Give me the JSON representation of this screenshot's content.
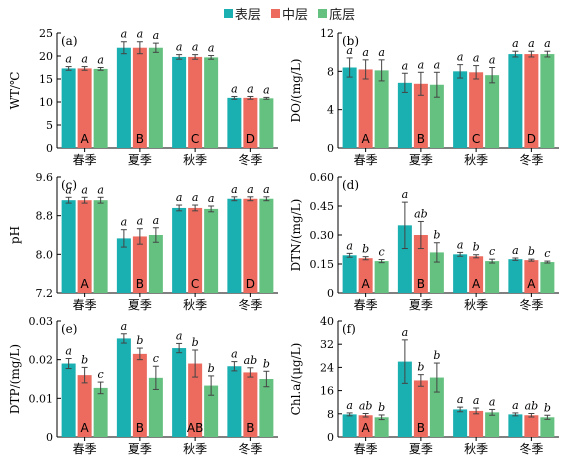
{
  "colors": {
    "surface": "#1AAFB1",
    "middle": "#EC6A5E",
    "bottom": "#65C180"
  },
  "legend": [
    {
      "label": "表层",
      "color": "#1AAFB1"
    },
    {
      "label": "中层",
      "color": "#EC6A5E"
    },
    {
      "label": "底层",
      "color": "#65C180"
    }
  ],
  "chart_data": [
    {
      "panel": "(a)",
      "type": "bar",
      "ylabel": "WT/℃",
      "ylim": [
        0,
        25
      ],
      "yticks": [
        "0",
        "5",
        "10",
        "15",
        "20",
        "25"
      ],
      "categories": [
        "春季",
        "夏季",
        "秋季",
        "冬季"
      ],
      "series": [
        {
          "name": "表层",
          "values": [
            17.3,
            21.8,
            19.8,
            10.9
          ],
          "errors": [
            0.4,
            1.3,
            0.5,
            0.3
          ],
          "letters": [
            "a",
            "a",
            "a",
            "a"
          ]
        },
        {
          "name": "中层",
          "values": [
            17.3,
            21.8,
            19.8,
            10.9
          ],
          "errors": [
            0.4,
            1.3,
            0.5,
            0.3
          ],
          "letters": [
            "a",
            "a",
            "a",
            "a"
          ]
        },
        {
          "name": "底层",
          "values": [
            17.2,
            21.8,
            19.7,
            10.8
          ],
          "errors": [
            0.3,
            1.0,
            0.4,
            0.2
          ],
          "letters": [
            "a",
            "a",
            "a",
            "a"
          ]
        }
      ],
      "group_labels": [
        "A",
        "B",
        "C",
        "D"
      ]
    },
    {
      "panel": "(b)",
      "type": "bar",
      "ylabel": "DO/(mg/L)",
      "ylim": [
        0,
        12
      ],
      "yticks": [
        "0",
        "4",
        "8",
        "12"
      ],
      "categories": [
        "春季",
        "夏季",
        "秋季",
        "冬季"
      ],
      "series": [
        {
          "name": "表层",
          "values": [
            8.4,
            6.8,
            8.0,
            9.8
          ],
          "errors": [
            1.0,
            1.0,
            0.7,
            0.3
          ],
          "letters": [
            "a",
            "a",
            "a",
            "a"
          ]
        },
        {
          "name": "中层",
          "values": [
            8.2,
            6.7,
            7.9,
            9.8
          ],
          "errors": [
            1.0,
            1.2,
            0.7,
            0.3
          ],
          "letters": [
            "a",
            "a",
            "a",
            "a"
          ]
        },
        {
          "name": "底层",
          "values": [
            8.1,
            6.6,
            7.6,
            9.8
          ],
          "errors": [
            1.1,
            1.3,
            0.8,
            0.3
          ],
          "letters": [
            "a",
            "a",
            "a",
            "a"
          ]
        }
      ],
      "group_labels": [
        "A",
        "B",
        "C",
        "D"
      ]
    },
    {
      "panel": "(c)",
      "type": "bar",
      "ylabel": "pH",
      "ylim": [
        7.2,
        9.6
      ],
      "yticks": [
        "7.2",
        "8.0",
        "8.8",
        "9.6"
      ],
      "categories": [
        "春季",
        "夏季",
        "秋季",
        "冬季"
      ],
      "series": [
        {
          "name": "表层",
          "values": [
            9.12,
            8.33,
            8.96,
            9.15
          ],
          "errors": [
            0.06,
            0.18,
            0.06,
            0.04
          ],
          "letters": [
            "a",
            "a",
            "a",
            "a"
          ]
        },
        {
          "name": "中层",
          "values": [
            9.12,
            8.37,
            8.96,
            9.15
          ],
          "errors": [
            0.06,
            0.16,
            0.06,
            0.04
          ],
          "letters": [
            "a",
            "a",
            "a",
            "a"
          ]
        },
        {
          "name": "底层",
          "values": [
            9.12,
            8.4,
            8.94,
            9.15
          ],
          "errors": [
            0.06,
            0.15,
            0.06,
            0.04
          ],
          "letters": [
            "a",
            "a",
            "a",
            "a"
          ]
        }
      ],
      "group_labels": [
        "A",
        "B",
        "C",
        "D"
      ]
    },
    {
      "panel": "(d)",
      "type": "bar",
      "ylabel": "DTN/(mg/L)",
      "ylim": [
        0,
        0.6
      ],
      "yticks": [
        "0",
        "0.15",
        "0.30",
        "0.45",
        "0.60"
      ],
      "categories": [
        "春季",
        "夏季",
        "秋季",
        "冬季"
      ],
      "series": [
        {
          "name": "表层",
          "values": [
            0.195,
            0.35,
            0.2,
            0.175
          ],
          "errors": [
            0.01,
            0.12,
            0.01,
            0.006
          ],
          "letters": [
            "a",
            "a",
            "a",
            "a"
          ]
        },
        {
          "name": "中层",
          "values": [
            0.18,
            0.3,
            0.19,
            0.17
          ],
          "errors": [
            0.008,
            0.07,
            0.008,
            0.005
          ],
          "letters": [
            "b",
            "ab",
            "b",
            "b"
          ]
        },
        {
          "name": "底层",
          "values": [
            0.165,
            0.21,
            0.165,
            0.16
          ],
          "errors": [
            0.008,
            0.05,
            0.01,
            0.005
          ],
          "letters": [
            "c",
            "b",
            "c",
            "c"
          ]
        }
      ],
      "group_labels": [
        "A",
        "B",
        "A",
        "A"
      ]
    },
    {
      "panel": "(e)",
      "type": "bar",
      "ylabel": "DTP/(mg/L)",
      "ylim": [
        0,
        0.03
      ],
      "yticks": [
        "0",
        "0.01",
        "0.02",
        "0.03"
      ],
      "categories": [
        "春季",
        "夏季",
        "秋季",
        "冬季"
      ],
      "series": [
        {
          "name": "表层",
          "values": [
            0.019,
            0.0255,
            0.023,
            0.0183
          ],
          "errors": [
            0.0013,
            0.0012,
            0.0012,
            0.0012
          ],
          "letters": [
            "a",
            "a",
            "a",
            "a"
          ]
        },
        {
          "name": "中层",
          "values": [
            0.016,
            0.0215,
            0.019,
            0.0167
          ],
          "errors": [
            0.002,
            0.0015,
            0.0035,
            0.0012
          ],
          "letters": [
            "b",
            "b",
            "b",
            "ab"
          ]
        },
        {
          "name": "底层",
          "values": [
            0.0127,
            0.0153,
            0.0133,
            0.015
          ],
          "errors": [
            0.0015,
            0.003,
            0.0025,
            0.002
          ],
          "letters": [
            "c",
            "c",
            "b",
            "b"
          ]
        }
      ],
      "group_labels": [
        "A",
        "B",
        "AB",
        "B"
      ]
    },
    {
      "panel": "(f)",
      "type": "bar",
      "ylabel": "Chl.a/(μg/L)",
      "ylim": [
        0,
        40
      ],
      "yticks": [
        "0",
        "8",
        "16",
        "24",
        "32",
        "40"
      ],
      "categories": [
        "春季",
        "夏季",
        "秋季",
        "冬季"
      ],
      "series": [
        {
          "name": "表层",
          "values": [
            7.8,
            26.0,
            9.5,
            7.8
          ],
          "errors": [
            0.5,
            7.5,
            0.8,
            0.5
          ],
          "letters": [
            "a",
            "a",
            "a",
            "a"
          ]
        },
        {
          "name": "中层",
          "values": [
            7.5,
            19.5,
            9.0,
            7.5
          ],
          "errors": [
            0.6,
            2.0,
            1.0,
            0.6
          ],
          "letters": [
            "ab",
            "b",
            "a",
            "ab"
          ]
        },
        {
          "name": "底层",
          "values": [
            6.8,
            20.5,
            8.5,
            6.8
          ],
          "errors": [
            0.8,
            5.0,
            1.0,
            0.7
          ],
          "letters": [
            "b",
            "b",
            "a",
            "b"
          ]
        }
      ],
      "group_labels": [
        "A",
        "B",
        "",
        ""
      ]
    }
  ]
}
